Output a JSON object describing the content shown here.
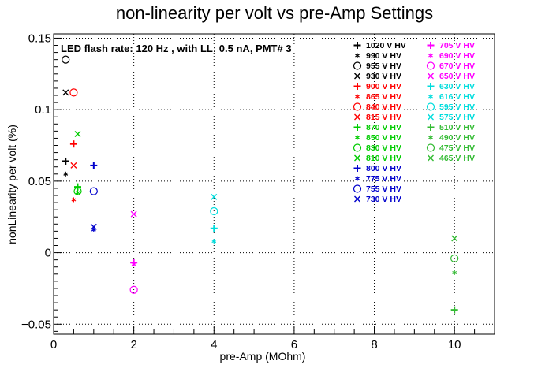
{
  "chart_data": {
    "type": "scatter",
    "title": "non-linearity per volt vs pre-Amp Settings",
    "xlabel": "pre-Amp (MOhm)",
    "ylabel": "nonLinearity per volt (%)",
    "annotation": "LED flash rate: 120 Hz , with LL: 0.5 nA, PMT# 3",
    "xlim": [
      0,
      11
    ],
    "ylim": [
      -0.057,
      0.153
    ],
    "x_ticks": [
      0,
      2,
      4,
      6,
      8,
      10
    ],
    "x_tick_labels": [
      "0",
      "2",
      "4",
      "6",
      "8",
      "10"
    ],
    "y_ticks": [
      -0.05,
      0,
      0.05,
      0.1,
      0.15
    ],
    "y_tick_labels": [
      "−0.05",
      "0",
      "0.05",
      "0.1",
      "0.15"
    ],
    "grid": true,
    "legend_position": "top-right",
    "series": [
      {
        "name": "1020 V HV",
        "marker": "+",
        "color": "#000000",
        "points": [
          {
            "x": 0.3,
            "y": 0.064
          }
        ]
      },
      {
        "name": "990 V HV",
        "marker": "*",
        "color": "#000000",
        "points": [
          {
            "x": 0.3,
            "y": 0.055
          }
        ]
      },
      {
        "name": "955 V HV",
        "marker": "O",
        "color": "#000000",
        "points": [
          {
            "x": 0.3,
            "y": 0.135
          }
        ]
      },
      {
        "name": "930 V HV",
        "marker": "X",
        "color": "#000000",
        "points": [
          {
            "x": 0.3,
            "y": 0.112
          }
        ]
      },
      {
        "name": "900 V HV",
        "marker": "+",
        "color": "#ff0000",
        "points": [
          {
            "x": 0.5,
            "y": 0.076
          }
        ]
      },
      {
        "name": "865 V HV",
        "marker": "*",
        "color": "#ff0000",
        "points": [
          {
            "x": 0.5,
            "y": 0.037
          }
        ]
      },
      {
        "name": "840 V HV",
        "marker": "O",
        "color": "#ff0000",
        "points": [
          {
            "x": 0.5,
            "y": 0.112
          }
        ]
      },
      {
        "name": "815 V HV",
        "marker": "X",
        "color": "#ff0000",
        "points": [
          {
            "x": 0.5,
            "y": 0.061
          }
        ]
      },
      {
        "name": "870 V HV",
        "marker": "+",
        "color": "#00cc00",
        "points": [
          {
            "x": 0.6,
            "y": 0.046
          }
        ]
      },
      {
        "name": "850 V HV",
        "marker": "*",
        "color": "#00cc00",
        "points": [
          {
            "x": 0.6,
            "y": 0.042
          }
        ]
      },
      {
        "name": "830 V HV",
        "marker": "O",
        "color": "#00cc00",
        "points": [
          {
            "x": 0.6,
            "y": 0.043
          }
        ]
      },
      {
        "name": "810 V HV",
        "marker": "X",
        "color": "#00cc00",
        "points": [
          {
            "x": 0.6,
            "y": 0.083
          }
        ]
      },
      {
        "name": "800 V HV",
        "marker": "+",
        "color": "#0000cc",
        "points": [
          {
            "x": 1.0,
            "y": 0.061
          }
        ]
      },
      {
        "name": "775 V HV",
        "marker": "*",
        "color": "#0000cc",
        "points": [
          {
            "x": 1.0,
            "y": 0.016
          }
        ]
      },
      {
        "name": "755 V HV",
        "marker": "O",
        "color": "#0000cc",
        "points": [
          {
            "x": 1.0,
            "y": 0.043
          }
        ]
      },
      {
        "name": "730 V HV",
        "marker": "X",
        "color": "#0000cc",
        "points": [
          {
            "x": 1.0,
            "y": 0.018
          }
        ]
      },
      {
        "name": "705 V HV",
        "marker": "+",
        "color": "#ff00ff",
        "points": [
          {
            "x": 2.0,
            "y": -0.007
          }
        ]
      },
      {
        "name": "690 V HV",
        "marker": "*",
        "color": "#ff00ff",
        "points": [
          {
            "x": 2.0,
            "y": -0.008
          }
        ]
      },
      {
        "name": "670 V HV",
        "marker": "O",
        "color": "#ff00ff",
        "points": [
          {
            "x": 2.0,
            "y": -0.026
          }
        ]
      },
      {
        "name": "650 V HV",
        "marker": "X",
        "color": "#ff00ff",
        "points": [
          {
            "x": 2.0,
            "y": 0.027
          }
        ]
      },
      {
        "name": "630 V HV",
        "marker": "+",
        "color": "#00dddd",
        "points": [
          {
            "x": 4.0,
            "y": 0.017
          }
        ]
      },
      {
        "name": "616 V HV",
        "marker": "*",
        "color": "#00dddd",
        "points": [
          {
            "x": 4.0,
            "y": 0.008
          }
        ]
      },
      {
        "name": "595 V HV",
        "marker": "O",
        "color": "#00dddd",
        "points": [
          {
            "x": 4.0,
            "y": 0.029
          }
        ]
      },
      {
        "name": "575 V HV",
        "marker": "X",
        "color": "#00dddd",
        "points": [
          {
            "x": 4.0,
            "y": 0.039
          }
        ]
      },
      {
        "name": "510 V HV",
        "marker": "+",
        "color": "#33bb33",
        "points": [
          {
            "x": 10.0,
            "y": -0.04
          }
        ]
      },
      {
        "name": "490 V HV",
        "marker": "*",
        "color": "#33bb33",
        "points": [
          {
            "x": 10.0,
            "y": -0.014
          }
        ]
      },
      {
        "name": "475 V HV",
        "marker": "O",
        "color": "#33bb33",
        "points": [
          {
            "x": 10.0,
            "y": -0.004
          }
        ]
      },
      {
        "name": "465 V HV",
        "marker": "X",
        "color": "#33bb33",
        "points": [
          {
            "x": 10.0,
            "y": 0.01
          }
        ]
      }
    ]
  }
}
